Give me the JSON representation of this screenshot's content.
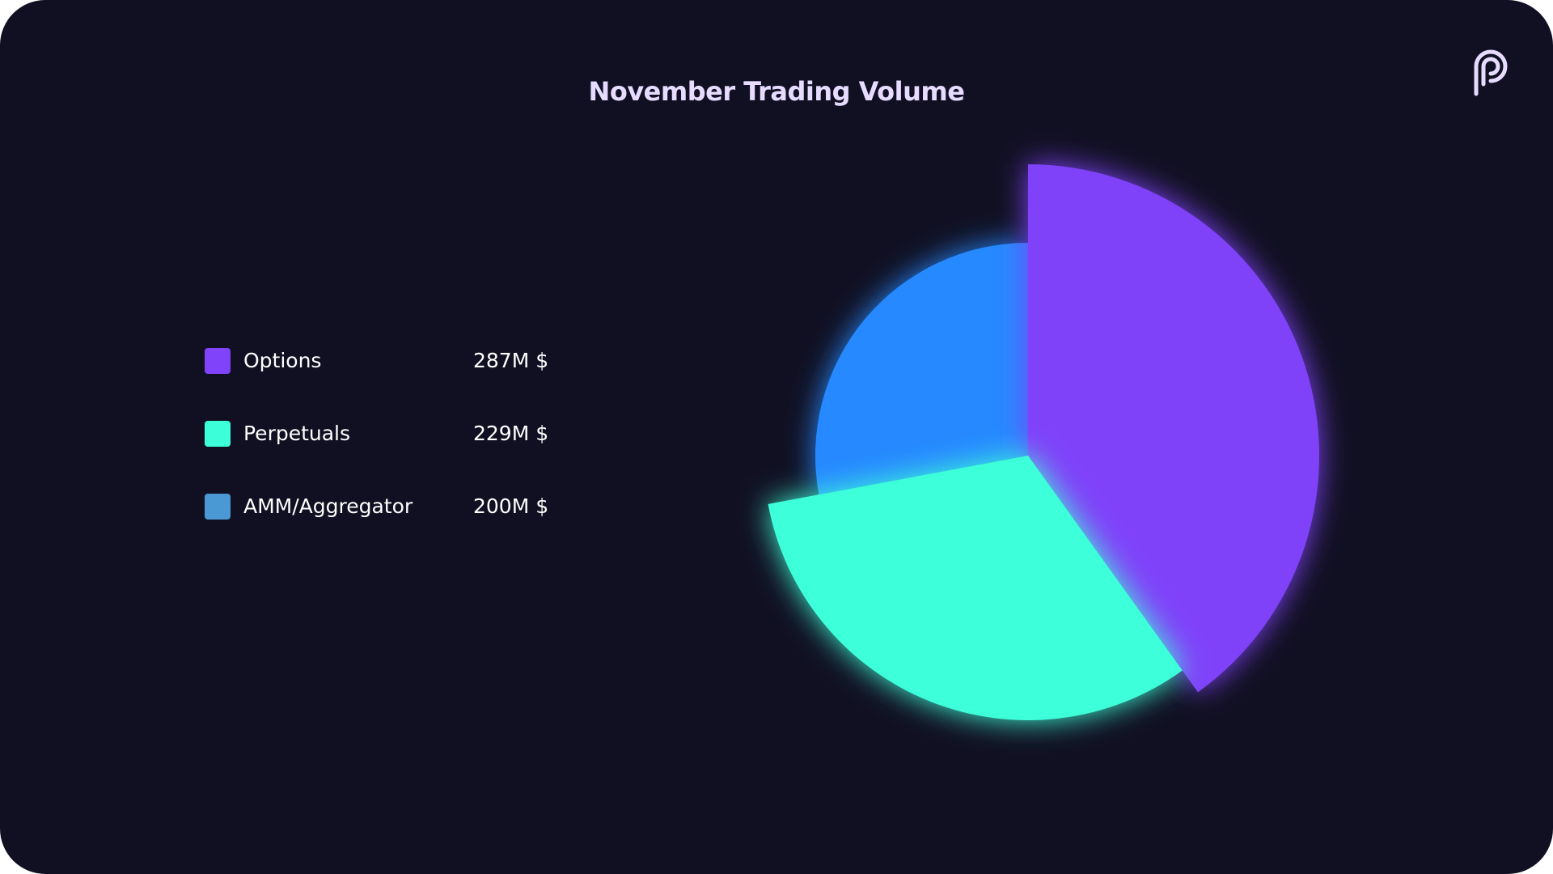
{
  "chart_data": {
    "type": "pie",
    "title": "November Trading Volume",
    "unit": "M $",
    "categories": [
      "Options",
      "Perpetuals",
      "AMM/Aggregator"
    ],
    "values": [
      287,
      229,
      200
    ],
    "value_labels": [
      "287M $",
      "229M $",
      "200M $"
    ],
    "colors": [
      "#8043f9",
      "#3cffd9",
      "#2589ff"
    ],
    "legend_colors": [
      "#8043f9",
      "#3cffd9",
      "#4a98d4"
    ],
    "start_angle": "12 o'clock",
    "direction": "clockwise",
    "legend_position": "left"
  },
  "brand": {
    "logo_icon": "pyth-logo-icon",
    "logo_color": "#e7dcff"
  },
  "theme": {
    "background": "#111022",
    "title_color": "#e7dcff"
  }
}
